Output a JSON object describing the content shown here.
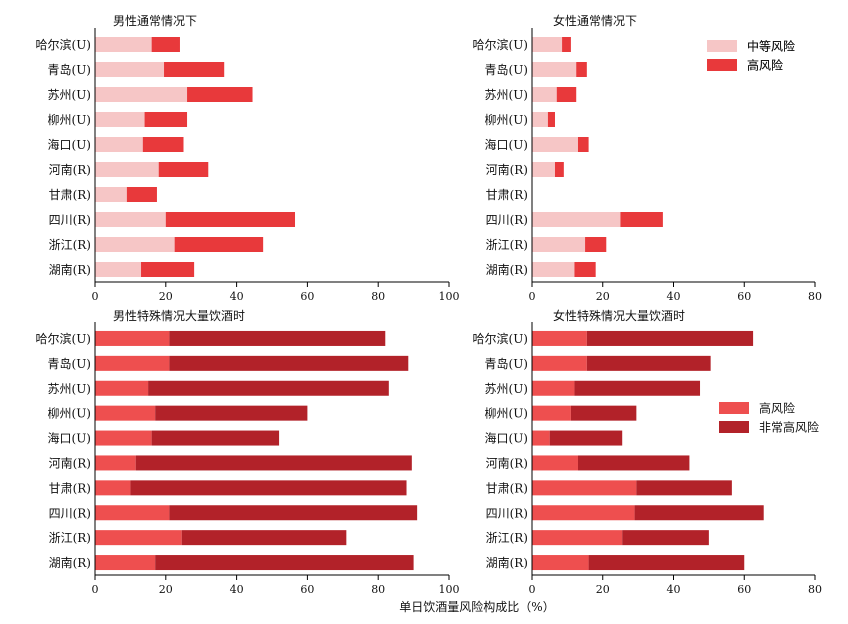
{
  "xlabel": "单日饮酒量风险构成比（%）",
  "colors": {
    "moderate": "#f6c6c6",
    "high": "#e8393b",
    "high2": "#ee4f4f",
    "very_high": "#b22229"
  },
  "chart_data": [
    {
      "type": "bar",
      "stacked": true,
      "orientation": "horizontal",
      "title": "男性通常情况下",
      "categories": [
        "哈尔滨(U)",
        "青岛(U)",
        "苏州(U)",
        "柳州(U)",
        "海口(U)",
        "河南(R)",
        "甘肃(R)",
        "四川(R)",
        "浙江(R)",
        "湖南(R)"
      ],
      "xlim": [
        0,
        100
      ],
      "xticks": [
        0,
        20,
        40,
        60,
        80,
        100
      ],
      "series": [
        {
          "name": "中等风险",
          "color_key": "moderate",
          "values": [
            16,
            19.5,
            26,
            14,
            13.5,
            18,
            9,
            20,
            22.5,
            13
          ]
        },
        {
          "name": "高风险",
          "color_key": "high",
          "values": [
            8,
            17,
            18.5,
            12,
            11.5,
            14,
            8.5,
            36.5,
            25,
            15
          ]
        }
      ]
    },
    {
      "type": "bar",
      "stacked": true,
      "orientation": "horizontal",
      "title": "女性通常情况下",
      "categories": [
        "哈尔滨(U)",
        "青岛(U)",
        "苏州(U)",
        "柳州(U)",
        "海口(U)",
        "河南(R)",
        "甘肃(R)",
        "四川(R)",
        "浙江(R)",
        "湖南(R)"
      ],
      "xlim": [
        0,
        80
      ],
      "xticks": [
        0,
        20,
        40,
        60,
        80
      ],
      "legend": "top-right",
      "series": [
        {
          "name": "中等风险",
          "color_key": "moderate",
          "values": [
            8.5,
            12.5,
            7,
            4.5,
            13,
            6.5,
            0,
            25,
            15,
            12
          ]
        },
        {
          "name": "高风险",
          "color_key": "high",
          "values": [
            2.5,
            3,
            5.5,
            2,
            3,
            2.5,
            0,
            12,
            6,
            6
          ]
        }
      ]
    },
    {
      "type": "bar",
      "stacked": true,
      "orientation": "horizontal",
      "title": "男性特殊情况大量饮酒时",
      "categories": [
        "哈尔滨(U)",
        "青岛(U)",
        "苏州(U)",
        "柳州(U)",
        "海口(U)",
        "河南(R)",
        "甘肃(R)",
        "四川(R)",
        "浙江(R)",
        "湖南(R)"
      ],
      "xlim": [
        0,
        100
      ],
      "xticks": [
        0,
        20,
        40,
        60,
        80,
        100
      ],
      "series": [
        {
          "name": "高风险",
          "color_key": "high2",
          "values": [
            21,
            21,
            15,
            17,
            16,
            11.5,
            10,
            21,
            24.5,
            17
          ]
        },
        {
          "name": "非常高风险",
          "color_key": "very_high",
          "values": [
            61,
            67.5,
            68,
            43,
            36,
            78,
            78,
            70,
            46.5,
            73
          ]
        }
      ]
    },
    {
      "type": "bar",
      "stacked": true,
      "orientation": "horizontal",
      "title": "女性特殊情况大量饮酒时",
      "categories": [
        "哈尔滨(U)",
        "青岛(U)",
        "苏州(U)",
        "柳州(U)",
        "海口(U)",
        "河南(R)",
        "甘肃(R)",
        "四川(R)",
        "浙江(R)",
        "湖南(R)"
      ],
      "xlim": [
        0,
        80
      ],
      "xticks": [
        0,
        20,
        40,
        60,
        80
      ],
      "legend": "right",
      "series": [
        {
          "name": "高风险",
          "color_key": "high2",
          "values": [
            15.5,
            15.5,
            12,
            11,
            5,
            13,
            29.5,
            29,
            25.5,
            16
          ]
        },
        {
          "name": "非常高风险",
          "color_key": "very_high",
          "values": [
            47,
            35,
            35.5,
            18.5,
            20.5,
            31.5,
            27,
            36.5,
            24.5,
            44
          ]
        }
      ]
    }
  ]
}
